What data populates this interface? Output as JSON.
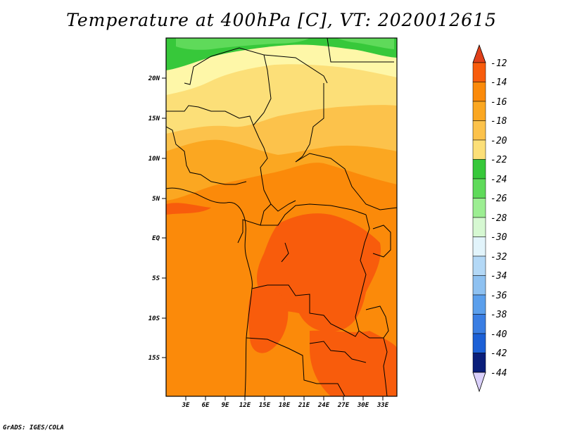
{
  "map": {
    "title": "Temperature at 400hPa [C], VT: 2020012615",
    "footer": "GrADS: IGES/COLA",
    "lat_labels": [
      "20N",
      "15N",
      "10N",
      "5N",
      "EQ",
      "5S",
      "10S",
      "15S"
    ],
    "lon_labels": [
      "3E",
      "6E",
      "9E",
      "12E",
      "15E",
      "18E",
      "21E",
      "24E",
      "27E",
      "30E",
      "33E"
    ],
    "colorbar": {
      "labels": [
        "-12",
        "-14",
        "-16",
        "-18",
        "-20",
        "-22",
        "-24",
        "-26",
        "-28",
        "-30",
        "-32",
        "-34",
        "-36",
        "-38",
        "-40",
        "-42",
        "-44"
      ],
      "colors": [
        "#f85c0c",
        "#fb8a0a",
        "#fba721",
        "#fcc24b",
        "#fcdf78",
        "#fef7a8",
        "#37c83a",
        "#5fda5a",
        "#9cee92",
        "#d6f8d2",
        "#e2f4fb",
        "#b3d8f6",
        "#8ec1f1",
        "#5b9fec",
        "#3a7ee3",
        "#1c60d6",
        "#0a46b6"
      ],
      "top_color": "#e0401a",
      "bottom_color": "#dad0fb"
    },
    "colors": {
      "orange_main": "#fba721",
      "orange_dark": "#fb8a0a",
      "orange_red": "#f85c0c",
      "yellow1": "#fcc24b",
      "yellow2": "#fcdf78",
      "cream": "#fef7a8",
      "green": "#37c83a",
      "green_light": "#5fda5a"
    }
  }
}
